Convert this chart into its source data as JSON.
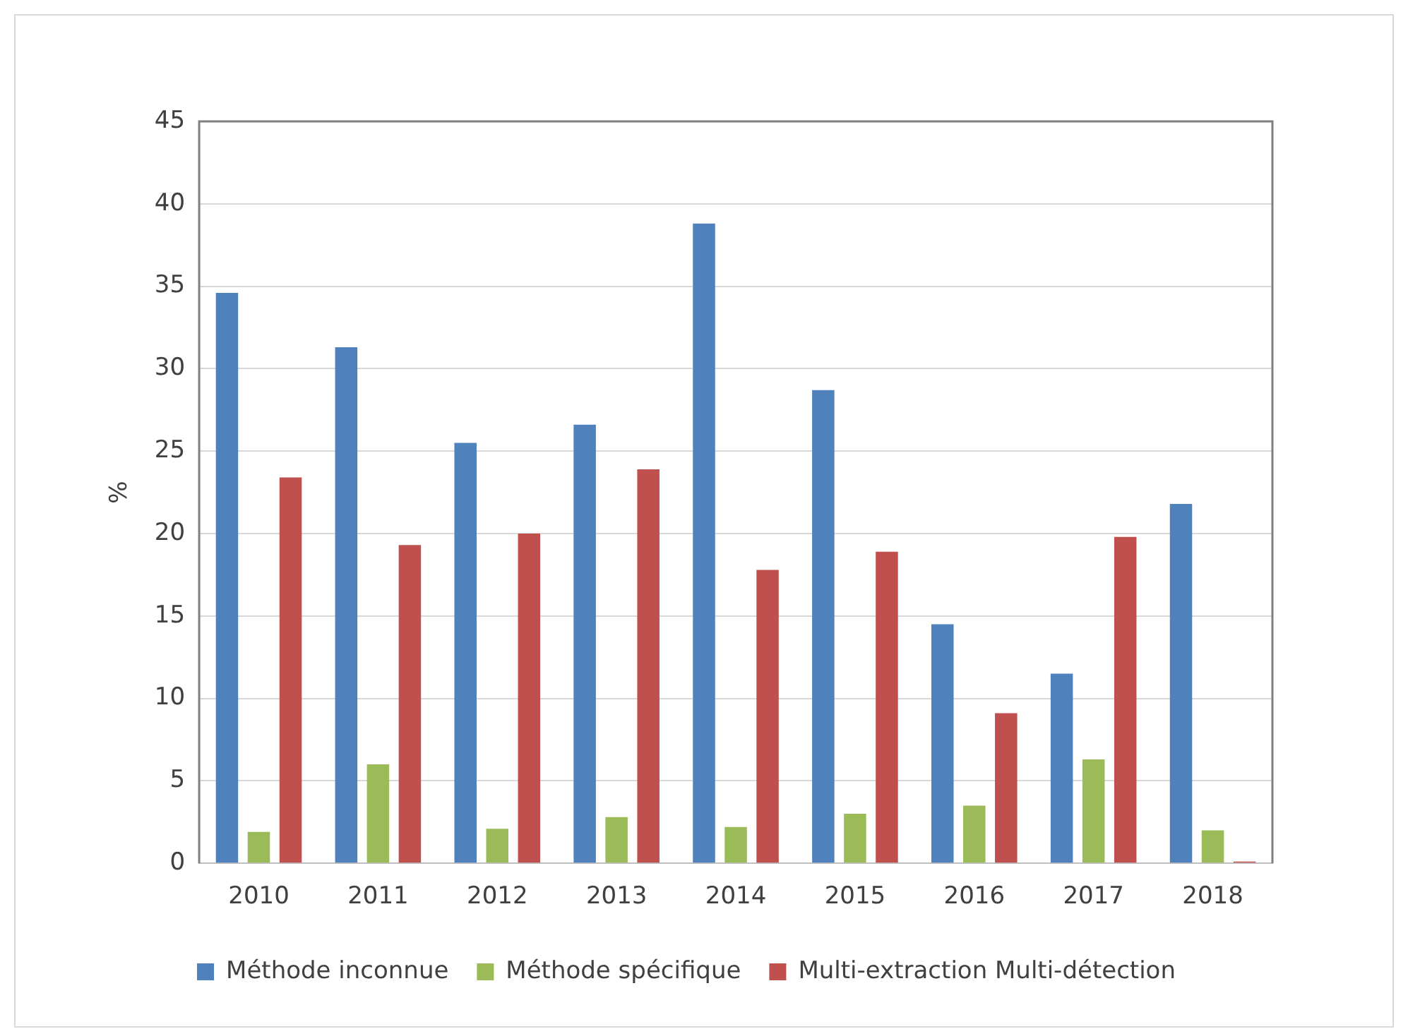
{
  "chart_data": {
    "type": "bar",
    "ylabel": "%",
    "categories": [
      "2010",
      "2011",
      "2012",
      "2013",
      "2014",
      "2015",
      "2016",
      "2017",
      "2018"
    ],
    "series": [
      {
        "name": "Méthode inconnue",
        "color": "#4f81bd",
        "values": [
          34.6,
          31.3,
          25.5,
          26.6,
          38.8,
          28.7,
          14.5,
          11.5,
          21.8
        ]
      },
      {
        "name": "Méthode spécifique",
        "color": "#9bbb59",
        "values": [
          1.9,
          6.0,
          2.1,
          2.8,
          2.2,
          3.0,
          3.5,
          6.3,
          2.0
        ]
      },
      {
        "name": "Multi-extraction Multi-détection",
        "color": "#c0504d",
        "values": [
          23.4,
          19.3,
          20.0,
          23.9,
          17.8,
          18.9,
          9.1,
          19.8,
          0.1
        ]
      }
    ],
    "ylim": [
      0,
      45
    ],
    "yticks": [
      0,
      5,
      10,
      15,
      20,
      25,
      30,
      35,
      40,
      45
    ],
    "grid": "y",
    "legend": "bottom"
  }
}
